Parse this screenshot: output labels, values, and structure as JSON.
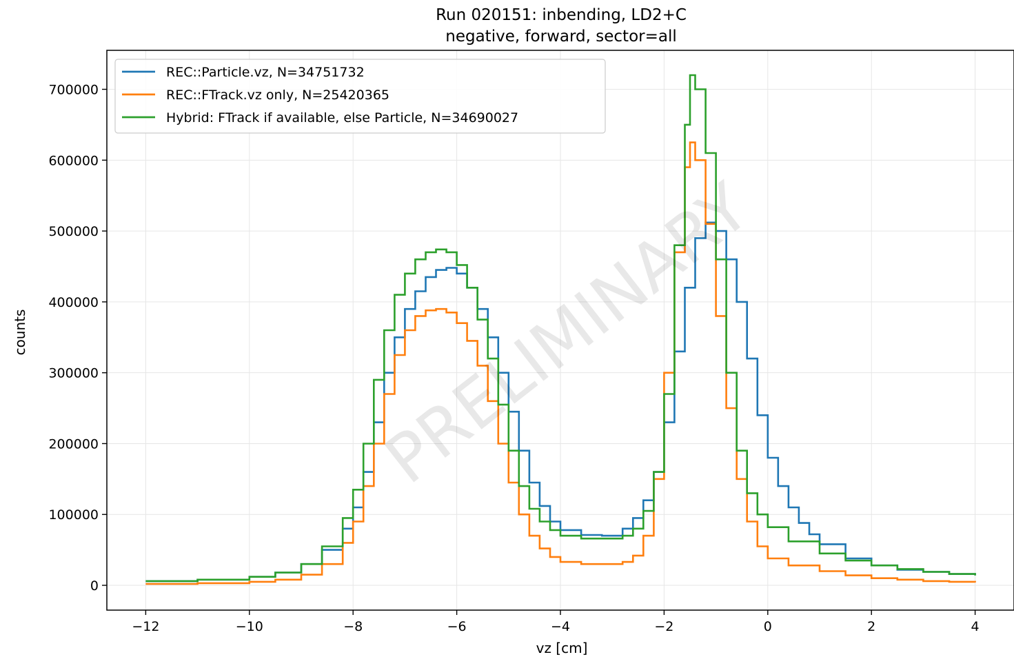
{
  "chart_data": {
    "type": "line",
    "style": "step-histogram",
    "title": "Run 020151: inbending, LD2+C",
    "subtitle": "negative, forward, sector=all",
    "xlabel": "vz [cm]",
    "ylabel": "counts",
    "watermark": "PRELIMINARY",
    "xlim": [
      -12.75,
      4.75
    ],
    "ylim": [
      -35000,
      755000
    ],
    "xticks": [
      -12,
      -10,
      -8,
      -6,
      -4,
      -2,
      0,
      2,
      4
    ],
    "xtick_labels": [
      "−12",
      "−10",
      "−8",
      "−6",
      "−4",
      "−2",
      "0",
      "2",
      "4"
    ],
    "yticks": [
      0,
      100000,
      200000,
      300000,
      400000,
      500000,
      600000,
      700000
    ],
    "ytick_labels": [
      "0",
      "100000",
      "200000",
      "300000",
      "400000",
      "500000",
      "600000",
      "700000"
    ],
    "grid": true,
    "legend_position": "top-left",
    "series": [
      {
        "name": "REC::Particle.vz, N=34751732",
        "color": "#1f77b4",
        "points": [
          [
            -12,
            6000
          ],
          [
            -11,
            8000
          ],
          [
            -10,
            12000
          ],
          [
            -9.5,
            18000
          ],
          [
            -9,
            30000
          ],
          [
            -8.6,
            50000
          ],
          [
            -8.2,
            80000
          ],
          [
            -8,
            110000
          ],
          [
            -7.8,
            160000
          ],
          [
            -7.6,
            230000
          ],
          [
            -7.4,
            300000
          ],
          [
            -7.2,
            350000
          ],
          [
            -7,
            390000
          ],
          [
            -6.8,
            415000
          ],
          [
            -6.6,
            435000
          ],
          [
            -6.4,
            445000
          ],
          [
            -6.2,
            448000
          ],
          [
            -6,
            440000
          ],
          [
            -5.8,
            420000
          ],
          [
            -5.6,
            390000
          ],
          [
            -5.4,
            350000
          ],
          [
            -5.2,
            300000
          ],
          [
            -5,
            245000
          ],
          [
            -4.8,
            190000
          ],
          [
            -4.6,
            145000
          ],
          [
            -4.4,
            112000
          ],
          [
            -4.2,
            90000
          ],
          [
            -4,
            78000
          ],
          [
            -3.6,
            71000
          ],
          [
            -3.2,
            70000
          ],
          [
            -2.8,
            80000
          ],
          [
            -2.6,
            95000
          ],
          [
            -2.4,
            120000
          ],
          [
            -2.2,
            160000
          ],
          [
            -2,
            230000
          ],
          [
            -1.8,
            330000
          ],
          [
            -1.6,
            420000
          ],
          [
            -1.4,
            490000
          ],
          [
            -1.2,
            512000
          ],
          [
            -1.0,
            500000
          ],
          [
            -0.8,
            460000
          ],
          [
            -0.6,
            400000
          ],
          [
            -0.4,
            320000
          ],
          [
            -0.2,
            240000
          ],
          [
            0,
            180000
          ],
          [
            0.2,
            140000
          ],
          [
            0.4,
            110000
          ],
          [
            0.6,
            88000
          ],
          [
            0.8,
            72000
          ],
          [
            1,
            58000
          ],
          [
            1.5,
            38000
          ],
          [
            2,
            28000
          ],
          [
            2.5,
            22000
          ],
          [
            3,
            19000
          ],
          [
            3.5,
            16000
          ],
          [
            4,
            14000
          ]
        ]
      },
      {
        "name": "REC::FTrack.vz only, N=25420365",
        "color": "#ff7f0e",
        "points": [
          [
            -12,
            2000
          ],
          [
            -11,
            3000
          ],
          [
            -10,
            5000
          ],
          [
            -9.5,
            8000
          ],
          [
            -9,
            15000
          ],
          [
            -8.6,
            30000
          ],
          [
            -8.2,
            60000
          ],
          [
            -8,
            90000
          ],
          [
            -7.8,
            140000
          ],
          [
            -7.6,
            200000
          ],
          [
            -7.4,
            270000
          ],
          [
            -7.2,
            325000
          ],
          [
            -7,
            360000
          ],
          [
            -6.8,
            380000
          ],
          [
            -6.6,
            388000
          ],
          [
            -6.4,
            390000
          ],
          [
            -6.2,
            385000
          ],
          [
            -6,
            370000
          ],
          [
            -5.8,
            345000
          ],
          [
            -5.6,
            310000
          ],
          [
            -5.4,
            260000
          ],
          [
            -5.2,
            200000
          ],
          [
            -5,
            145000
          ],
          [
            -4.8,
            100000
          ],
          [
            -4.6,
            70000
          ],
          [
            -4.4,
            52000
          ],
          [
            -4.2,
            40000
          ],
          [
            -4,
            33000
          ],
          [
            -3.6,
            30000
          ],
          [
            -3.2,
            30000
          ],
          [
            -2.8,
            33000
          ],
          [
            -2.6,
            42000
          ],
          [
            -2.4,
            70000
          ],
          [
            -2.2,
            150000
          ],
          [
            -2,
            300000
          ],
          [
            -1.8,
            470000
          ],
          [
            -1.6,
            590000
          ],
          [
            -1.5,
            625000
          ],
          [
            -1.4,
            600000
          ],
          [
            -1.2,
            510000
          ],
          [
            -1.0,
            380000
          ],
          [
            -0.8,
            250000
          ],
          [
            -0.6,
            150000
          ],
          [
            -0.4,
            90000
          ],
          [
            -0.2,
            55000
          ],
          [
            0,
            38000
          ],
          [
            0.4,
            28000
          ],
          [
            1,
            20000
          ],
          [
            1.5,
            14000
          ],
          [
            2,
            10000
          ],
          [
            2.5,
            8000
          ],
          [
            3,
            6000
          ],
          [
            3.5,
            5000
          ],
          [
            4,
            4000
          ]
        ]
      },
      {
        "name": "Hybrid: FTrack if available, else Particle, N=34690027",
        "color": "#2ca02c",
        "points": [
          [
            -12,
            6000
          ],
          [
            -11,
            8000
          ],
          [
            -10,
            12000
          ],
          [
            -9.5,
            18000
          ],
          [
            -9,
            30000
          ],
          [
            -8.6,
            55000
          ],
          [
            -8.2,
            95000
          ],
          [
            -8,
            135000
          ],
          [
            -7.8,
            200000
          ],
          [
            -7.6,
            290000
          ],
          [
            -7.4,
            360000
          ],
          [
            -7.2,
            410000
          ],
          [
            -7,
            440000
          ],
          [
            -6.8,
            460000
          ],
          [
            -6.6,
            470000
          ],
          [
            -6.4,
            474000
          ],
          [
            -6.2,
            470000
          ],
          [
            -6,
            452000
          ],
          [
            -5.8,
            420000
          ],
          [
            -5.6,
            375000
          ],
          [
            -5.4,
            320000
          ],
          [
            -5.2,
            255000
          ],
          [
            -5,
            190000
          ],
          [
            -4.8,
            140000
          ],
          [
            -4.6,
            108000
          ],
          [
            -4.4,
            90000
          ],
          [
            -4.2,
            78000
          ],
          [
            -4,
            70000
          ],
          [
            -3.6,
            66000
          ],
          [
            -3.2,
            66000
          ],
          [
            -2.8,
            70000
          ],
          [
            -2.6,
            80000
          ],
          [
            -2.4,
            105000
          ],
          [
            -2.2,
            160000
          ],
          [
            -2,
            270000
          ],
          [
            -1.8,
            480000
          ],
          [
            -1.6,
            650000
          ],
          [
            -1.5,
            720000
          ],
          [
            -1.4,
            700000
          ],
          [
            -1.2,
            610000
          ],
          [
            -1.0,
            460000
          ],
          [
            -0.8,
            300000
          ],
          [
            -0.6,
            190000
          ],
          [
            -0.4,
            130000
          ],
          [
            -0.2,
            100000
          ],
          [
            0,
            82000
          ],
          [
            0.4,
            62000
          ],
          [
            1,
            45000
          ],
          [
            1.5,
            35000
          ],
          [
            2,
            28000
          ],
          [
            2.5,
            23000
          ],
          [
            3,
            19000
          ],
          [
            3.5,
            16000
          ],
          [
            4,
            14000
          ]
        ]
      }
    ]
  }
}
